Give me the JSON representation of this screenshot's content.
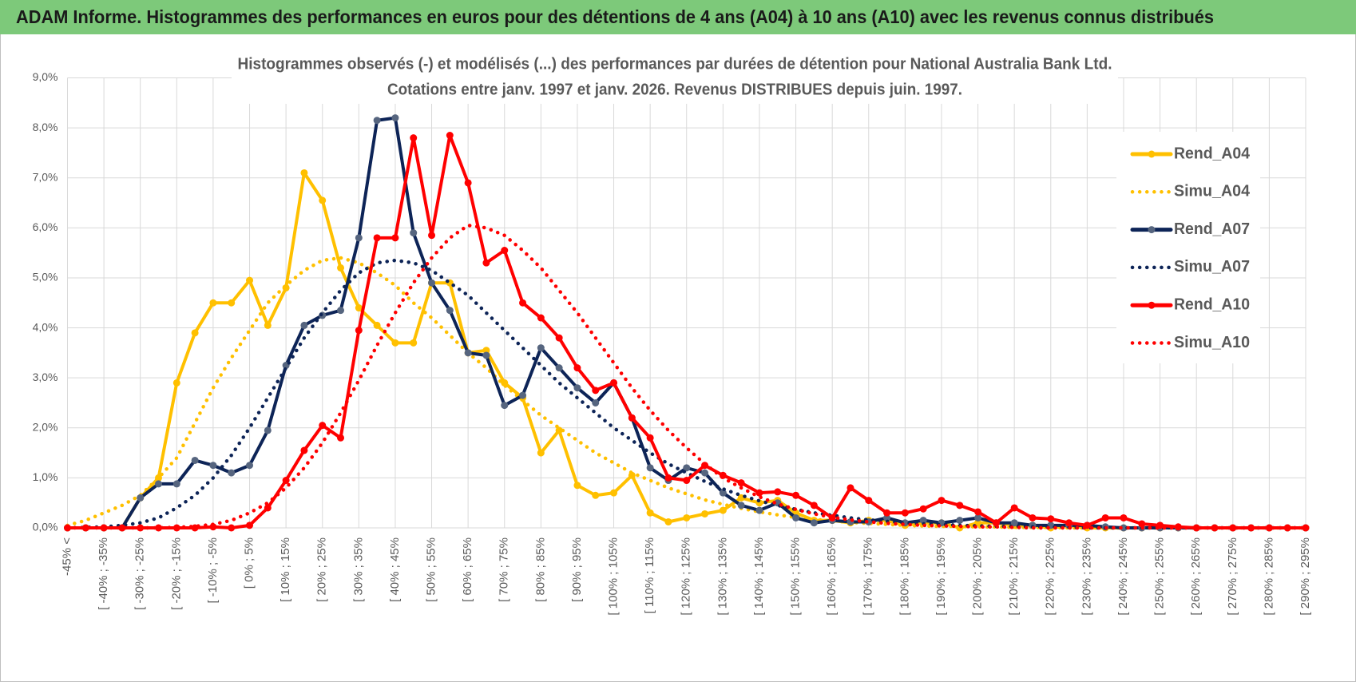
{
  "header": "ADAM Informe. Histogrammes des performances en euros pour des détentions de 4 ans (A04) à 10 ans (A10) avec les revenus connus distribués",
  "chart_data": {
    "type": "line",
    "title": "Histogrammes observés (-) et modélisés (...) des performances par durées de détention pour National Australia Bank Ltd.",
    "subtitle": "Cotations entre janv. 1997 et janv. 2026. Revenus DISTRIBUES depuis juin. 1997.",
    "categories": [
      "-45% <",
      null,
      "[ -40% ; -35%",
      null,
      "[ -30% ; -25%",
      null,
      "[ -20% ; -15%",
      null,
      "[ -10% ; -5%",
      null,
      "[ 0% ; 5%",
      null,
      "[ 10% ; 15%",
      null,
      "[ 20% ; 25%",
      null,
      "[ 30% ; 35%",
      null,
      "[ 40% ; 45%",
      null,
      "[ 50% ; 55%",
      null,
      "[ 60% ; 65%",
      null,
      "[ 70% ; 75%",
      null,
      "[ 80% ; 85%",
      null,
      "[ 90% ; 95%",
      null,
      "[ 100% ; 105%",
      null,
      "[ 110% ; 115%",
      null,
      "[ 120% ; 125%",
      null,
      "[ 130% ; 135%",
      null,
      "[ 140% ; 145%",
      null,
      "[ 150% ; 155%",
      null,
      "[ 160% ; 165%",
      null,
      "[ 170% ; 175%",
      null,
      "[ 180% ; 185%",
      null,
      "[ 190% ; 195%",
      null,
      "[ 200% ; 205%",
      null,
      "[ 210% ; 215%",
      null,
      "[ 220% ; 225%",
      null,
      "[ 230% ; 235%",
      null,
      "[ 240% ; 245%",
      null,
      "[ 250% ; 255%",
      null,
      "[ 260% ; 265%",
      null,
      "[ 270% ; 275%",
      null,
      "[ 280% ; 285%",
      null,
      "[ 290% ; 295%"
    ],
    "ylim": [
      0,
      9
    ],
    "yticks": [
      {
        "value": 0,
        "label": "0,0%"
      },
      {
        "value": 1,
        "label": "1,0%"
      },
      {
        "value": 2,
        "label": "2,0%"
      },
      {
        "value": 3,
        "label": "3,0%"
      },
      {
        "value": 4,
        "label": "4,0%"
      },
      {
        "value": 5,
        "label": "5,0%"
      },
      {
        "value": 6,
        "label": "6,0%"
      },
      {
        "value": 7,
        "label": "7,0%"
      },
      {
        "value": 8,
        "label": "8,0%"
      },
      {
        "value": 9,
        "label": "9,0%"
      }
    ],
    "grid": true,
    "legend": "right",
    "series": [
      {
        "name": "Rend_A04",
        "color": "#FFC000",
        "style": "solid",
        "marker_color": "#FFC000",
        "values": [
          0,
          0,
          0,
          0,
          0.6,
          1.0,
          2.9,
          3.9,
          4.5,
          4.5,
          4.95,
          4.05,
          4.8,
          7.1,
          6.55,
          5.2,
          4.4,
          4.05,
          3.7,
          3.7,
          4.9,
          4.9,
          3.5,
          3.55,
          2.9,
          2.6,
          1.5,
          1.95,
          0.85,
          0.65,
          0.7,
          1.05,
          0.3,
          0.12,
          0.2,
          0.28,
          0.35,
          0.6,
          0.5,
          0.55,
          0.3,
          0.15,
          0.15,
          0.1,
          0.15,
          0.15,
          0.05,
          0.1,
          0.1,
          0,
          0.1,
          0.1,
          0.05,
          0.05,
          0,
          0.05,
          0,
          0,
          0,
          0,
          0,
          0,
          0,
          0,
          0,
          0,
          0,
          0,
          0
        ]
      },
      {
        "name": "Simu_A04",
        "color": "#FFC000",
        "style": "dotted",
        "values": [
          0.05,
          0.15,
          0.3,
          0.45,
          0.65,
          1.0,
          1.4,
          2.1,
          2.8,
          3.4,
          3.95,
          4.5,
          4.85,
          5.15,
          5.35,
          5.4,
          5.3,
          5.1,
          4.85,
          4.5,
          4.2,
          3.85,
          3.5,
          3.2,
          2.85,
          2.55,
          2.25,
          2.0,
          1.75,
          1.5,
          1.3,
          1.1,
          0.95,
          0.8,
          0.68,
          0.56,
          0.47,
          0.39,
          0.32,
          0.26,
          0.21,
          0.17,
          0.14,
          0.11,
          0.09,
          0.07,
          0.05,
          0.04,
          0.03,
          0.03,
          0.02,
          0.02,
          0.01,
          0.01,
          0.01,
          0,
          0,
          0,
          0,
          0,
          0,
          0,
          0,
          0,
          0,
          0,
          0,
          0,
          0
        ]
      },
      {
        "name": "Rend_A07",
        "color": "#0D2457",
        "style": "solid",
        "marker_color": "#56657F",
        "values": [
          0,
          0,
          0,
          0,
          0.6,
          0.88,
          0.88,
          1.35,
          1.25,
          1.1,
          1.25,
          1.95,
          3.25,
          4.05,
          4.25,
          4.35,
          5.8,
          8.15,
          8.2,
          5.9,
          4.9,
          4.35,
          3.5,
          3.45,
          2.45,
          2.65,
          3.6,
          3.2,
          2.8,
          2.5,
          2.9,
          2.2,
          1.2,
          0.95,
          1.2,
          1.1,
          0.7,
          0.45,
          0.35,
          0.5,
          0.2,
          0.1,
          0.15,
          0.12,
          0.12,
          0.2,
          0.1,
          0.15,
          0.1,
          0.15,
          0.2,
          0.1,
          0.1,
          0.05,
          0.05,
          0.05,
          0.05,
          0.02,
          0,
          0,
          0,
          0,
          0,
          0,
          0,
          0,
          0,
          0,
          0
        ]
      },
      {
        "name": "Simu_A07",
        "color": "#0D2457",
        "style": "dotted",
        "values": [
          0,
          0.01,
          0.02,
          0.05,
          0.1,
          0.2,
          0.4,
          0.65,
          1.0,
          1.45,
          2.0,
          2.6,
          3.2,
          3.8,
          4.3,
          4.75,
          5.1,
          5.3,
          5.35,
          5.3,
          5.15,
          4.9,
          4.65,
          4.3,
          3.95,
          3.6,
          3.25,
          2.9,
          2.6,
          2.3,
          2.0,
          1.75,
          1.5,
          1.28,
          1.1,
          0.93,
          0.78,
          0.65,
          0.54,
          0.45,
          0.37,
          0.3,
          0.25,
          0.2,
          0.16,
          0.13,
          0.1,
          0.08,
          0.07,
          0.05,
          0.04,
          0.03,
          0.03,
          0.02,
          0.02,
          0.01,
          0,
          0,
          0,
          0,
          0,
          0,
          0,
          0,
          0,
          0,
          0,
          0,
          0
        ]
      },
      {
        "name": "Rend_A10",
        "color": "#FF0000",
        "style": "solid",
        "marker_color": "#FF0000",
        "values": [
          0,
          0,
          0,
          0,
          0,
          0,
          0,
          0,
          0.02,
          0,
          0.05,
          0.4,
          0.95,
          1.55,
          2.05,
          1.8,
          3.95,
          5.8,
          5.8,
          7.8,
          5.85,
          7.85,
          6.9,
          5.3,
          5.55,
          4.5,
          4.2,
          3.8,
          3.2,
          2.75,
          2.9,
          2.2,
          1.8,
          1.0,
          0.95,
          1.25,
          1.05,
          0.9,
          0.7,
          0.72,
          0.65,
          0.45,
          0.2,
          0.8,
          0.55,
          0.3,
          0.3,
          0.38,
          0.55,
          0.45,
          0.32,
          0.1,
          0.4,
          0.2,
          0.18,
          0.1,
          0.05,
          0.2,
          0.2,
          0.08,
          0.05,
          0.02,
          0,
          0,
          0,
          0,
          0,
          0,
          0
        ]
      },
      {
        "name": "Simu_A10",
        "color": "#FF0000",
        "style": "dotted",
        "values": [
          0,
          0,
          0,
          0,
          0,
          0,
          0.01,
          0.03,
          0.07,
          0.15,
          0.3,
          0.5,
          0.8,
          1.2,
          1.7,
          2.3,
          2.95,
          3.65,
          4.3,
          4.9,
          5.4,
          5.8,
          6.05,
          6.0,
          5.85,
          5.55,
          5.2,
          4.75,
          4.3,
          3.8,
          3.3,
          2.8,
          2.35,
          1.95,
          1.6,
          1.28,
          1.0,
          0.8,
          0.62,
          0.48,
          0.37,
          0.28,
          0.21,
          0.16,
          0.12,
          0.09,
          0.07,
          0.05,
          0.04,
          0.03,
          0.02,
          0.02,
          0.01,
          0,
          0,
          0,
          0,
          0,
          0,
          0,
          0,
          0,
          0,
          0,
          0,
          0,
          0,
          0,
          0
        ]
      }
    ]
  }
}
